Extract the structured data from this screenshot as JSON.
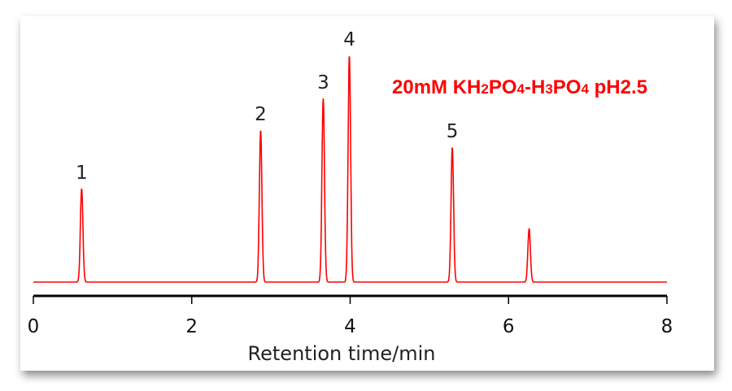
{
  "chart_data": {
    "type": "line",
    "title": "20mM KH2PO4-H3PO4 pH2.5",
    "title_parts": [
      {
        "text": "20mM KH",
        "sub": false
      },
      {
        "text": "2",
        "sub": true
      },
      {
        "text": "PO",
        "sub": false
      },
      {
        "text": "4",
        "sub": true
      },
      {
        "text": "-H",
        "sub": false
      },
      {
        "text": "3",
        "sub": true
      },
      {
        "text": "PO",
        "sub": false
      },
      {
        "text": "4",
        "sub": true
      },
      {
        "text": " pH2.5",
        "sub": false
      }
    ],
    "xlabel": "Retention time/min",
    "ylabel": "",
    "xlim": [
      0,
      8
    ],
    "ylim": [
      0,
      290
    ],
    "xticks": [
      "0",
      "2",
      "4",
      "6",
      "8"
    ],
    "grid": false,
    "series_color": "#ff0000",
    "peaks": [
      {
        "label": "1",
        "time": 0.61,
        "height": 115
      },
      {
        "label": "2",
        "time": 2.87,
        "height": 187
      },
      {
        "label": "3",
        "time": 3.66,
        "height": 226
      },
      {
        "label": "4",
        "time": 3.99,
        "height": 279
      },
      {
        "label": "5",
        "time": 5.29,
        "height": 166
      },
      {
        "label": "",
        "time": 6.26,
        "height": 66
      }
    ]
  }
}
